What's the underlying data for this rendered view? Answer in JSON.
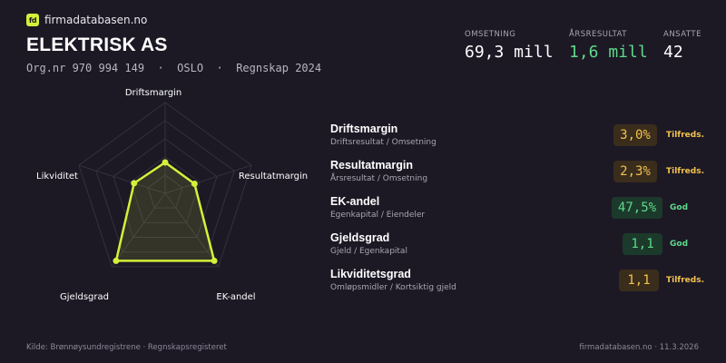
{
  "brand": {
    "logo_text": "fd",
    "name": "firmadatabasen.no",
    "accent": "#d6f03a"
  },
  "company": {
    "name": "ELEKTRISK AS",
    "meta": "Org.nr 970 994 149  ·  OSLO  ·  Regnskap 2024"
  },
  "kpis": [
    {
      "label": "OMSETNING",
      "value": "69,3 mill"
    },
    {
      "label": "ÅRSRESULTAT",
      "value": "1,6 mill",
      "color": "#5ed98a"
    },
    {
      "label": "ANSATTE",
      "value": "42"
    }
  ],
  "radar": {
    "axes": [
      "Driftsmargin",
      "Resultatmargin",
      "EK-andel",
      "Gjeldsgrad",
      "Likviditet"
    ],
    "scores": [
      0.34,
      0.34,
      0.92,
      0.92,
      0.36
    ],
    "line_color": "#d6f03a"
  },
  "metrics": [
    {
      "name": "Driftsmargin",
      "sub": "Driftsresultat / Omsetning",
      "value": "3,0%",
      "status": "Tilfreds.",
      "tone": "yellow"
    },
    {
      "name": "Resultatmargin",
      "sub": "Årsresultat / Omsetning",
      "value": "2,3%",
      "status": "Tilfreds.",
      "tone": "yellow"
    },
    {
      "name": "EK-andel",
      "sub": "Egenkapital / Eiendeler",
      "value": "47,5%",
      "status": "God",
      "tone": "green"
    },
    {
      "name": "Gjeldsgrad",
      "sub": "Gjeld / Egenkapital",
      "value": "1,1",
      "status": "God",
      "tone": "green"
    },
    {
      "name": "Likviditetsgrad",
      "sub": "Omløpsmidler / Kortsiktig gjeld",
      "value": "1,1",
      "status": "Tilfreds.",
      "tone": "yellow"
    }
  ],
  "footer": {
    "source": "Kilde: Brønnøysundregistrene · Regnskapsregisteret",
    "site_date": "firmadatabasen.no · 11.3.2026"
  }
}
